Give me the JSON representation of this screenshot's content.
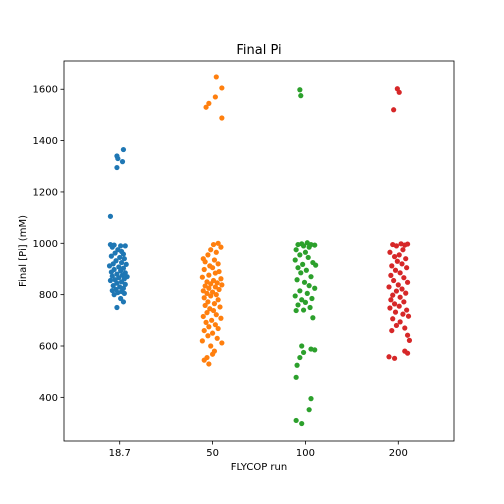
{
  "chart_data": {
    "type": "scatter",
    "title": "Final Pi",
    "xlabel": "FLYCOP run",
    "ylabel": "Final [Pi] (mM)",
    "categories": [
      "18.7",
      "50",
      "100",
      "200"
    ],
    "ylim": [
      230,
      1710
    ],
    "yticks": [
      400,
      600,
      800,
      1000,
      1200,
      1400,
      1600
    ],
    "grid": false,
    "legend": "none",
    "colors": [
      "#1f77b4",
      "#ff7f0e",
      "#2ca02c",
      "#d62728"
    ],
    "series": [
      {
        "category": "18.7",
        "points": [
          {
            "x": 0.04,
            "y": 1365
          },
          {
            "x": -0.03,
            "y": 1340
          },
          {
            "x": -0.02,
            "y": 1330
          },
          {
            "x": 0.03,
            "y": 1318
          },
          {
            "x": -0.03,
            "y": 1295
          },
          {
            "x": -0.1,
            "y": 1105
          },
          {
            "x": -0.1,
            "y": 995
          },
          {
            "x": -0.06,
            "y": 993
          },
          {
            "x": 0.01,
            "y": 990
          },
          {
            "x": 0.06,
            "y": 990
          },
          {
            "x": -0.08,
            "y": 985
          },
          {
            "x": -0.02,
            "y": 975
          },
          {
            "x": 0.02,
            "y": 968
          },
          {
            "x": -0.05,
            "y": 962
          },
          {
            "x": 0.04,
            "y": 958
          },
          {
            "x": -0.09,
            "y": 950
          },
          {
            "x": 0.0,
            "y": 945
          },
          {
            "x": 0.05,
            "y": 940
          },
          {
            "x": -0.04,
            "y": 932
          },
          {
            "x": 0.02,
            "y": 925
          },
          {
            "x": -0.07,
            "y": 920
          },
          {
            "x": 0.07,
            "y": 918
          },
          {
            "x": -0.11,
            "y": 912
          },
          {
            "x": -0.01,
            "y": 908
          },
          {
            "x": 0.04,
            "y": 903
          },
          {
            "x": -0.06,
            "y": 898
          },
          {
            "x": 0.01,
            "y": 893
          },
          {
            "x": -0.09,
            "y": 888
          },
          {
            "x": 0.06,
            "y": 885
          },
          {
            "x": -0.03,
            "y": 880
          },
          {
            "x": 0.03,
            "y": 876
          },
          {
            "x": -0.08,
            "y": 872
          },
          {
            "x": 0.08,
            "y": 870
          },
          {
            "x": -0.01,
            "y": 866
          },
          {
            "x": 0.05,
            "y": 862
          },
          {
            "x": -0.05,
            "y": 858
          },
          {
            "x": -0.1,
            "y": 855
          },
          {
            "x": 0.02,
            "y": 850
          },
          {
            "x": -0.03,
            "y": 845
          },
          {
            "x": 0.06,
            "y": 840
          },
          {
            "x": -0.07,
            "y": 835
          },
          {
            "x": 0.0,
            "y": 830
          },
          {
            "x": 0.04,
            "y": 825
          },
          {
            "x": -0.04,
            "y": 820
          },
          {
            "x": -0.08,
            "y": 816
          },
          {
            "x": 0.02,
            "y": 812
          },
          {
            "x": -0.02,
            "y": 808
          },
          {
            "x": 0.05,
            "y": 805
          },
          {
            "x": -0.06,
            "y": 800
          },
          {
            "x": 0.01,
            "y": 785
          },
          {
            "x": 0.04,
            "y": 772
          },
          {
            "x": -0.03,
            "y": 750
          }
        ]
      },
      {
        "category": "50",
        "points": [
          {
            "x": 0.04,
            "y": 1648
          },
          {
            "x": 0.1,
            "y": 1605
          },
          {
            "x": 0.03,
            "y": 1570
          },
          {
            "x": -0.04,
            "y": 1545
          },
          {
            "x": -0.07,
            "y": 1530
          },
          {
            "x": 0.1,
            "y": 1488
          },
          {
            "x": 0.06,
            "y": 1000
          },
          {
            "x": 0.01,
            "y": 995
          },
          {
            "x": 0.09,
            "y": 985
          },
          {
            "x": -0.02,
            "y": 975
          },
          {
            "x": 0.04,
            "y": 965
          },
          {
            "x": -0.05,
            "y": 955
          },
          {
            "x": -0.1,
            "y": 940
          },
          {
            "x": 0.02,
            "y": 935
          },
          {
            "x": -0.08,
            "y": 928
          },
          {
            "x": 0.06,
            "y": 920
          },
          {
            "x": -0.03,
            "y": 912
          },
          {
            "x": 0.0,
            "y": 905
          },
          {
            "x": -0.09,
            "y": 898
          },
          {
            "x": 0.07,
            "y": 890
          },
          {
            "x": 0.03,
            "y": 884
          },
          {
            "x": -0.04,
            "y": 876
          },
          {
            "x": -0.11,
            "y": 868
          },
          {
            "x": 0.09,
            "y": 862
          },
          {
            "x": 0.01,
            "y": 855
          },
          {
            "x": -0.06,
            "y": 850
          },
          {
            "x": 0.05,
            "y": 846
          },
          {
            "x": -0.02,
            "y": 842
          },
          {
            "x": 0.1,
            "y": 838
          },
          {
            "x": -0.08,
            "y": 834
          },
          {
            "x": 0.03,
            "y": 830
          },
          {
            "x": -0.04,
            "y": 825
          },
          {
            "x": 0.07,
            "y": 820
          },
          {
            "x": -0.1,
            "y": 815
          },
          {
            "x": 0.0,
            "y": 810
          },
          {
            "x": -0.06,
            "y": 805
          },
          {
            "x": 0.04,
            "y": 800
          },
          {
            "x": -0.02,
            "y": 795
          },
          {
            "x": -0.09,
            "y": 788
          },
          {
            "x": 0.06,
            "y": 780
          },
          {
            "x": -0.05,
            "y": 772
          },
          {
            "x": 0.02,
            "y": 765
          },
          {
            "x": -0.08,
            "y": 758
          },
          {
            "x": 0.08,
            "y": 752
          },
          {
            "x": -0.03,
            "y": 745
          },
          {
            "x": 0.01,
            "y": 738
          },
          {
            "x": -0.06,
            "y": 730
          },
          {
            "x": 0.04,
            "y": 722
          },
          {
            "x": -0.1,
            "y": 715
          },
          {
            "x": 0.09,
            "y": 708
          },
          {
            "x": -0.01,
            "y": 700
          },
          {
            "x": -0.07,
            "y": 692
          },
          {
            "x": 0.03,
            "y": 683
          },
          {
            "x": -0.04,
            "y": 675
          },
          {
            "x": 0.06,
            "y": 668
          },
          {
            "x": -0.09,
            "y": 660
          },
          {
            "x": 0.0,
            "y": 650
          },
          {
            "x": -0.05,
            "y": 640
          },
          {
            "x": 0.05,
            "y": 630
          },
          {
            "x": -0.11,
            "y": 620
          },
          {
            "x": 0.1,
            "y": 612
          },
          {
            "x": -0.02,
            "y": 600
          },
          {
            "x": 0.02,
            "y": 580
          },
          {
            "x": 0.0,
            "y": 568
          },
          {
            "x": -0.06,
            "y": 555
          },
          {
            "x": -0.09,
            "y": 545
          },
          {
            "x": -0.04,
            "y": 530
          }
        ]
      },
      {
        "category": "100",
        "points": [
          {
            "x": -0.06,
            "y": 1598
          },
          {
            "x": -0.05,
            "y": 1575
          },
          {
            "x": -0.08,
            "y": 995
          },
          {
            "x": -0.04,
            "y": 998
          },
          {
            "x": 0.02,
            "y": 1002
          },
          {
            "x": 0.06,
            "y": 995
          },
          {
            "x": 0.1,
            "y": 993
          },
          {
            "x": -0.02,
            "y": 990
          },
          {
            "x": 0.04,
            "y": 985
          },
          {
            "x": -0.1,
            "y": 975
          },
          {
            "x": 0.0,
            "y": 965
          },
          {
            "x": -0.06,
            "y": 955
          },
          {
            "x": 0.03,
            "y": 945
          },
          {
            "x": -0.11,
            "y": 935
          },
          {
            "x": 0.08,
            "y": 925
          },
          {
            "x": -0.03,
            "y": 918
          },
          {
            "x": 0.11,
            "y": 915
          },
          {
            "x": -0.08,
            "y": 905
          },
          {
            "x": 0.01,
            "y": 895
          },
          {
            "x": -0.05,
            "y": 885
          },
          {
            "x": 0.06,
            "y": 870
          },
          {
            "x": -0.09,
            "y": 858
          },
          {
            "x": -0.01,
            "y": 848
          },
          {
            "x": 0.04,
            "y": 835
          },
          {
            "x": 0.1,
            "y": 825
          },
          {
            "x": -0.06,
            "y": 815
          },
          {
            "x": 0.02,
            "y": 805
          },
          {
            "x": -0.11,
            "y": 795
          },
          {
            "x": 0.07,
            "y": 785
          },
          {
            "x": -0.04,
            "y": 780
          },
          {
            "x": 0.0,
            "y": 770
          },
          {
            "x": -0.08,
            "y": 760
          },
          {
            "x": 0.05,
            "y": 750
          },
          {
            "x": -0.02,
            "y": 740
          },
          {
            "x": -0.1,
            "y": 738
          },
          {
            "x": 0.08,
            "y": 710
          },
          {
            "x": -0.04,
            "y": 600
          },
          {
            "x": 0.06,
            "y": 588
          },
          {
            "x": 0.1,
            "y": 585
          },
          {
            "x": -0.02,
            "y": 575
          },
          {
            "x": -0.06,
            "y": 555
          },
          {
            "x": -0.09,
            "y": 525
          },
          {
            "x": -0.1,
            "y": 478
          },
          {
            "x": 0.06,
            "y": 395
          },
          {
            "x": 0.04,
            "y": 352
          },
          {
            "x": -0.1,
            "y": 310
          },
          {
            "x": -0.04,
            "y": 298
          }
        ]
      },
      {
        "category": "200",
        "points": [
          {
            "x": -0.01,
            "y": 1602
          },
          {
            "x": 0.01,
            "y": 1588
          },
          {
            "x": -0.05,
            "y": 1520
          },
          {
            "x": -0.06,
            "y": 995
          },
          {
            "x": 0.03,
            "y": 998
          },
          {
            "x": 0.07,
            "y": 993
          },
          {
            "x": 0.1,
            "y": 997
          },
          {
            "x": -0.02,
            "y": 990
          },
          {
            "x": 0.05,
            "y": 975
          },
          {
            "x": -0.09,
            "y": 965
          },
          {
            "x": 0.01,
            "y": 955
          },
          {
            "x": -0.04,
            "y": 948
          },
          {
            "x": 0.08,
            "y": 940
          },
          {
            "x": -0.01,
            "y": 930
          },
          {
            "x": 0.04,
            "y": 920
          },
          {
            "x": -0.07,
            "y": 912
          },
          {
            "x": 0.09,
            "y": 905
          },
          {
            "x": -0.03,
            "y": 895
          },
          {
            "x": 0.02,
            "y": 885
          },
          {
            "x": -0.08,
            "y": 875
          },
          {
            "x": 0.06,
            "y": 866
          },
          {
            "x": -0.05,
            "y": 855
          },
          {
            "x": 0.1,
            "y": 848
          },
          {
            "x": 0.0,
            "y": 838
          },
          {
            "x": -0.1,
            "y": 830
          },
          {
            "x": 0.04,
            "y": 822
          },
          {
            "x": -0.02,
            "y": 814
          },
          {
            "x": 0.08,
            "y": 806
          },
          {
            "x": -0.06,
            "y": 798
          },
          {
            "x": 0.02,
            "y": 790
          },
          {
            "x": -0.08,
            "y": 780
          },
          {
            "x": 0.06,
            "y": 772
          },
          {
            "x": -0.04,
            "y": 764
          },
          {
            "x": 0.01,
            "y": 755
          },
          {
            "x": -0.09,
            "y": 748
          },
          {
            "x": 0.09,
            "y": 740
          },
          {
            "x": -0.03,
            "y": 732
          },
          {
            "x": 0.05,
            "y": 724
          },
          {
            "x": 0.11,
            "y": 716
          },
          {
            "x": -0.06,
            "y": 706
          },
          {
            "x": 0.02,
            "y": 694
          },
          {
            "x": -0.02,
            "y": 680
          },
          {
            "x": 0.07,
            "y": 670
          },
          {
            "x": -0.07,
            "y": 660
          },
          {
            "x": 0.1,
            "y": 642
          },
          {
            "x": 0.12,
            "y": 622
          },
          {
            "x": 0.07,
            "y": 580
          },
          {
            "x": 0.1,
            "y": 572
          },
          {
            "x": -0.1,
            "y": 558
          },
          {
            "x": -0.04,
            "y": 552
          }
        ]
      }
    ]
  }
}
